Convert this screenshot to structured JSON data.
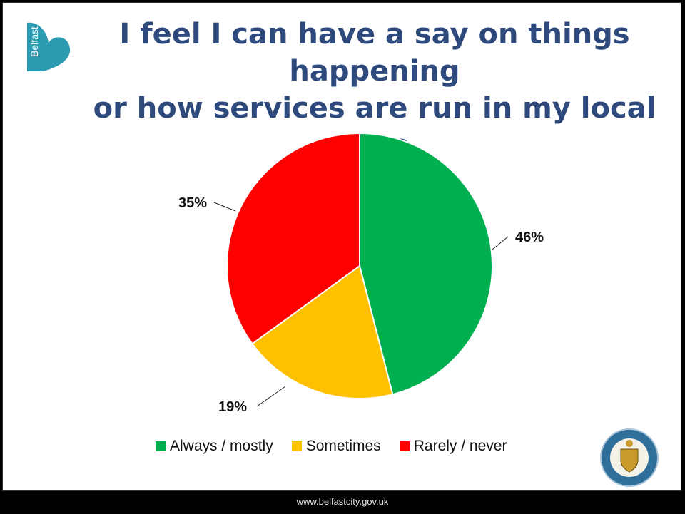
{
  "title": {
    "line1": "I feel I can  have a say on things happening",
    "line2": "or how services are run in my local area"
  },
  "logo": {
    "text": "Belfast",
    "color": "#2a9bb0"
  },
  "chart_data": {
    "type": "pie",
    "start_angle_deg": 0,
    "direction": "clockwise",
    "slices": [
      {
        "name": "Always / mostly",
        "value": 46,
        "label": "46%",
        "color": "#00b050"
      },
      {
        "name": "Sometimes",
        "value": 19,
        "label": "19%",
        "color": "#ffc000"
      },
      {
        "name": "Rarely / never",
        "value": 35,
        "label": "35%",
        "color": "#ff0000"
      }
    ],
    "legend_position": "bottom"
  },
  "legend": {
    "items": [
      {
        "label": "Always / mostly",
        "color": "#00b050"
      },
      {
        "label": "Sometimes",
        "color": "#ffc000"
      },
      {
        "label": "Rarely / never",
        "color": "#ff0000"
      }
    ]
  },
  "footer": {
    "url": "www.belfastcity.gov.uk"
  },
  "crest": {
    "text": "BELFAST CITY COUNCIL"
  }
}
